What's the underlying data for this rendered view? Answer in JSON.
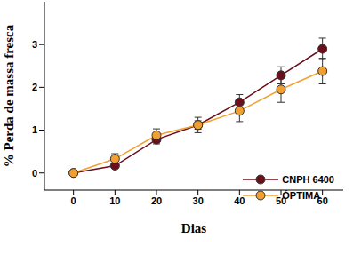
{
  "chart_data": {
    "type": "line",
    "x_label": "Dias",
    "y_label": "% Perda de massa fresca",
    "x": [
      0,
      10,
      20,
      30,
      40,
      50,
      60
    ],
    "series": [
      {
        "name": "CNPH 6400",
        "color": "#6b0f1a",
        "marker": "circle",
        "values": [
          0,
          0.17,
          0.78,
          1.12,
          1.65,
          2.28,
          2.9
        ],
        "errors": [
          0,
          0.04,
          0.1,
          0.1,
          0.18,
          0.2,
          0.25
        ]
      },
      {
        "name": "ÓPTIMA",
        "color": "#f0a030",
        "marker": "circle",
        "values": [
          0,
          0.33,
          0.88,
          1.12,
          1.45,
          1.95,
          2.38
        ],
        "errors": [
          0,
          0.12,
          0.15,
          0.18,
          0.25,
          0.3,
          0.3
        ]
      }
    ],
    "xlim": [
      -7,
      65
    ],
    "xticks": [
      0,
      10,
      20,
      30,
      40,
      50,
      60
    ],
    "ylim": [
      -0.4,
      4
    ],
    "yticks": [
      0,
      1,
      2,
      3
    ],
    "legend": "lower right",
    "grid": false
  }
}
